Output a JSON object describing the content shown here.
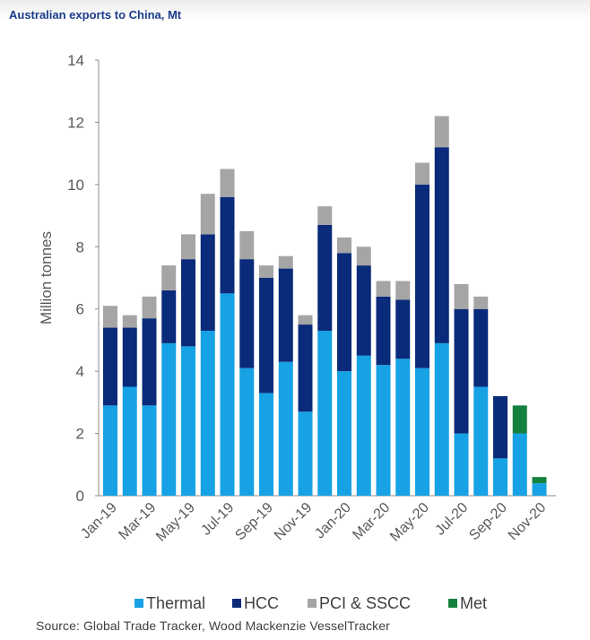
{
  "title": "Australian exports to China, Mt",
  "source": "Source: Global Trade Tracker, Wood Mackenzie VesselTracker",
  "chart_data": {
    "type": "bar",
    "stacked": true,
    "ylabel": "Million tonnes",
    "xlabel": "",
    "ylim": [
      0,
      14
    ],
    "yticks": [
      0,
      2,
      4,
      6,
      8,
      10,
      12,
      14
    ],
    "grid": false,
    "legend_position": "bottom",
    "categories": [
      "Jan-19",
      "Feb-19",
      "Mar-19",
      "Apr-19",
      "May-19",
      "Jun-19",
      "Jul-19",
      "Aug-19",
      "Sep-19",
      "Oct-19",
      "Nov-19",
      "Dec-19",
      "Jan-20",
      "Feb-20",
      "Mar-20",
      "Apr-20",
      "May-20",
      "Jun-20",
      "Jul-20",
      "Aug-20",
      "Sep-20",
      "Oct-20",
      "Nov-20"
    ],
    "x_tick_labels": [
      "Jan-19",
      "Mar-19",
      "May-19",
      "Jul-19",
      "Sep-19",
      "Nov-19",
      "Jan-20",
      "Mar-20",
      "May-20",
      "Jul-20",
      "Sep-20",
      "Nov-20"
    ],
    "series": [
      {
        "name": "Thermal",
        "color": "#16a2e4",
        "values": [
          2.9,
          3.5,
          2.9,
          4.9,
          4.8,
          5.3,
          6.5,
          4.1,
          3.3,
          4.3,
          2.7,
          5.3,
          4.0,
          4.5,
          4.2,
          4.4,
          4.1,
          4.9,
          2.0,
          3.5,
          1.2,
          2.0,
          0.4
        ]
      },
      {
        "name": "HCC",
        "color": "#0a2a7a",
        "values": [
          2.5,
          1.9,
          2.8,
          1.7,
          2.8,
          3.1,
          3.1,
          3.5,
          3.7,
          3.0,
          2.8,
          3.4,
          3.8,
          2.9,
          2.2,
          1.9,
          5.9,
          6.3,
          4.0,
          2.5,
          2.0,
          0.0,
          0.0
        ]
      },
      {
        "name": "PCI & SSCC",
        "color": "#a5a5a5",
        "values": [
          0.7,
          0.4,
          0.7,
          0.8,
          0.8,
          1.3,
          0.9,
          0.9,
          0.4,
          0.4,
          0.3,
          0.6,
          0.5,
          0.6,
          0.5,
          0.6,
          0.7,
          1.0,
          0.8,
          0.4,
          0.0,
          0.0,
          0.0
        ]
      },
      {
        "name": "Met",
        "color": "#14823e",
        "values": [
          0,
          0,
          0,
          0,
          0,
          0,
          0,
          0,
          0,
          0,
          0,
          0,
          0,
          0,
          0,
          0,
          0,
          0,
          0,
          0,
          0,
          0.9,
          0.2
        ]
      }
    ]
  }
}
